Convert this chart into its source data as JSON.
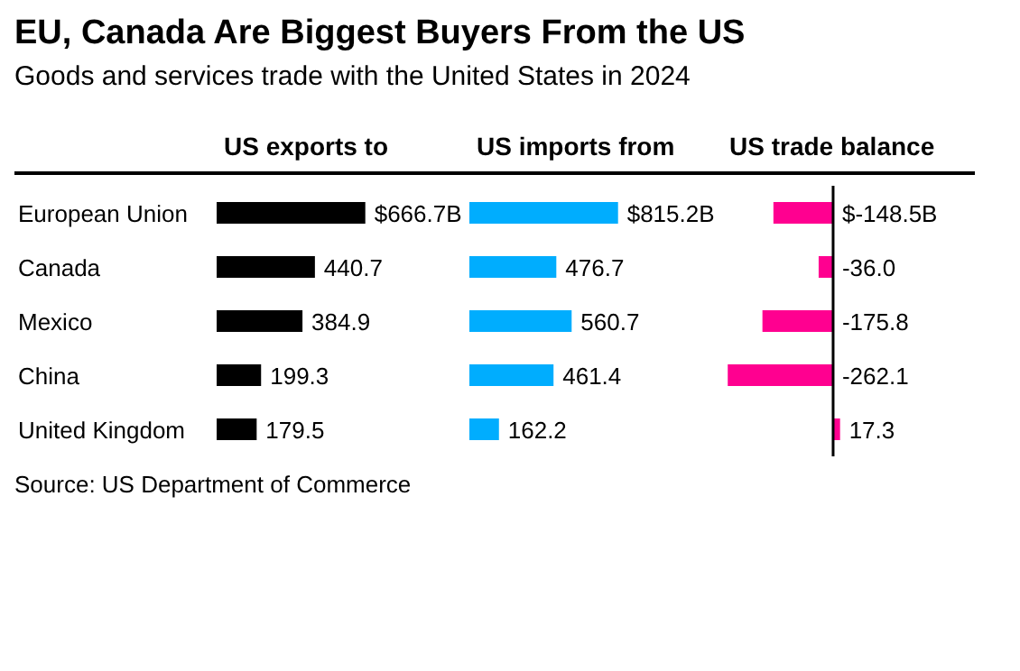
{
  "chart_data": [
    {
      "type": "bar",
      "orientation": "horizontal",
      "title": "EU, Canada Are Biggest Buyers From the US",
      "subtitle": "Goods and services trade with the United States in 2024",
      "xlabel": "US exports to",
      "categories": [
        "European Union",
        "Canada",
        "Mexico",
        "China",
        "United Kingdom"
      ],
      "tick_labels": "y",
      "series": [
        {
          "color": "#000000",
          "values": [
            666.7,
            440.7,
            384.9,
            199.3,
            179.5
          ],
          "value_labels": [
            "$666.7B",
            "440.7",
            "384.9",
            "199.3",
            "179.5"
          ]
        }
      ],
      "annotations": [
        "Source: US Department of Commerce"
      ]
    },
    {
      "type": "bar",
      "orientation": "horizontal",
      "xlabel": "US imports from",
      "tick_labels": false,
      "series": [
        {
          "color": "#00adfe",
          "values": [
            815.2,
            476.7,
            560.7,
            461.4,
            162.2
          ],
          "value_labels": [
            "$815.2B",
            "476.7",
            "560.7",
            "461.4",
            "162.2"
          ]
        }
      ]
    },
    {
      "type": "bar",
      "orientation": "horizontal",
      "xlabel": "US trade balance",
      "tick_labels": false,
      "series": [
        {
          "color": "#ff0090",
          "values": [
            -148.5,
            -36.0,
            -175.8,
            -262.1,
            17.3
          ],
          "value_labels": [
            "$-148.5B",
            "-36.0",
            "-175.8",
            "-262.1",
            "17.3"
          ]
        }
      ],
      "ref_lines": [
        {
          "axis": "x",
          "value": 0,
          "color": "#000000"
        }
      ]
    }
  ]
}
